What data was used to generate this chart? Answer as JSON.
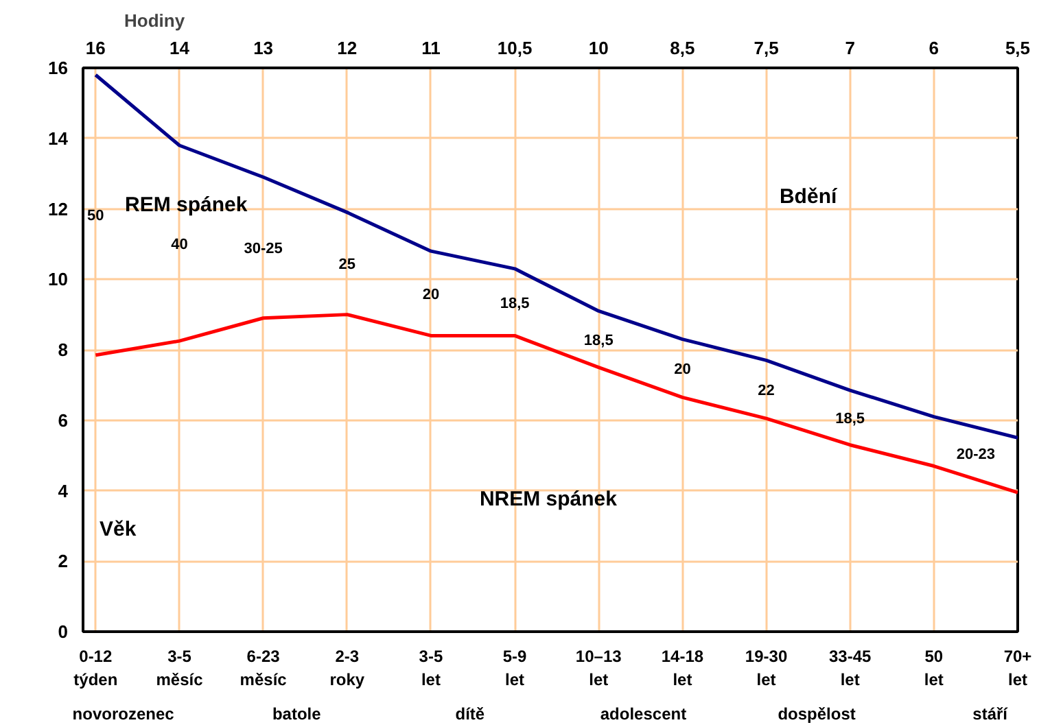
{
  "chart_data": {
    "type": "line",
    "xlabel": "Věk",
    "x2label": "Hodiny",
    "categories": [
      "0-12 týden",
      "3-5 měsíc",
      "6-23 měsíc",
      "2-3 roky",
      "3-5 let",
      "5-9 let",
      "10–13 let",
      "14-18 let",
      "19-30 let",
      "33-45 let",
      "50 let",
      "70+ let"
    ],
    "series": [
      {
        "color": "#00008b",
        "values": [
          15.8,
          13.8,
          12.9,
          11.9,
          10.8,
          10.3,
          9.1,
          8.3,
          7.7,
          6.85,
          6.1,
          5.5
        ]
      },
      {
        "color": "#ff0000",
        "values": [
          7.85,
          8.25,
          8.9,
          9.0,
          8.4,
          8.4,
          7.5,
          6.65,
          6.05,
          5.3,
          4.7,
          3.95
        ]
      }
    ],
    "ylim": [
      0,
      16
    ],
    "yticks": [
      0,
      2,
      4,
      6,
      8,
      10,
      12,
      14,
      16
    ],
    "grid": true,
    "line_style": "solid",
    "annotations": [
      "16",
      "14",
      "13",
      "12",
      "11",
      "10,5",
      "10",
      "8,5",
      "7,5",
      "7",
      "6",
      "5,5",
      "50",
      "40",
      "30-25",
      "25",
      "20",
      "18,5",
      "18,5",
      "20",
      "22",
      "18,5",
      "20-23",
      "REM spánek",
      "Bdění",
      "NREM spánek",
      "novorozenec",
      "batole",
      "dítě",
      "adolescent",
      "dospělost",
      "stáří"
    ]
  }
}
